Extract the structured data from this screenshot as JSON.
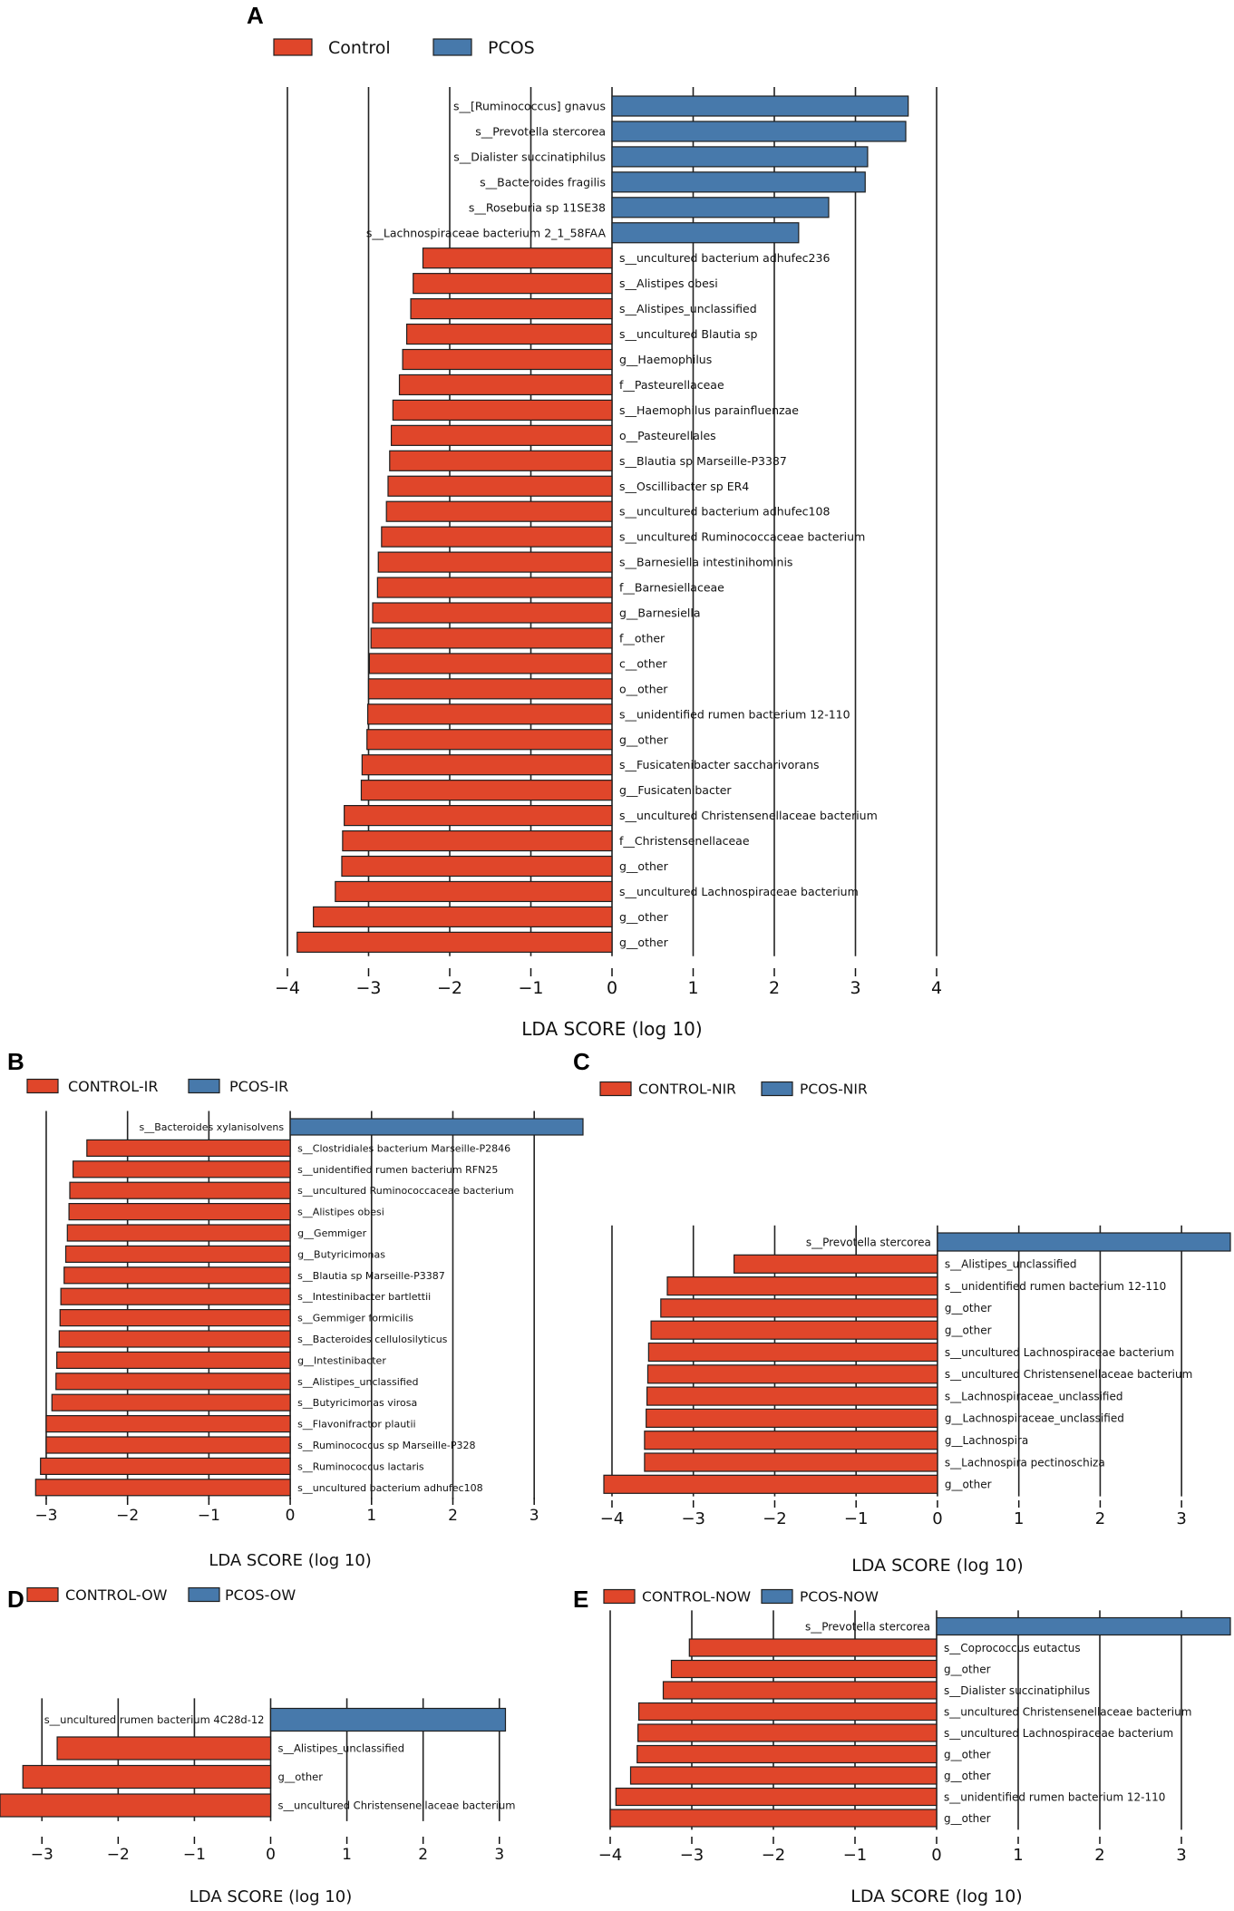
{
  "colors": {
    "control": "#e0462a",
    "case": "#4779ab",
    "edge": "#1f1f1f",
    "grid": "#222222"
  },
  "chart_data": [
    {
      "type": "bar",
      "panel": "A",
      "legend": [
        "Control",
        "PCOS"
      ],
      "xlabel": "LDA SCORE (log 10)",
      "xlim": [
        -4,
        4
      ],
      "xticks": [
        -4,
        -3,
        -2,
        -1,
        0,
        1,
        2,
        3,
        4
      ],
      "xtick_labels": [
        "−4",
        "−3",
        "−2",
        "−1",
        "0",
        "1",
        "2",
        "3",
        "4"
      ],
      "categories": [
        "s__[Ruminococcus] gnavus",
        "s__Prevotella stercorea",
        "s__Dialister succinatiphilus",
        "s__Bacteroides fragilis",
        "s__Roseburia sp 11SE38",
        "s__Lachnospiraceae bacterium 2_1_58FAA",
        "s__uncultured bacterium adhufec236",
        "s__Alistipes obesi",
        "s__Alistipes_unclassified",
        "s__uncultured Blautia sp",
        "g__Haemophilus",
        "f__Pasteurellaceae",
        "s__Haemophilus parainfluenzae",
        "o__Pasteurellales",
        "s__Blautia sp Marseille-P3387",
        "s__Oscillibacter sp ER4",
        "s__uncultured bacterium adhufec108",
        "s__uncultured Ruminococcaceae bacterium",
        "s__Barnesiella intestinihominis",
        "f__Barnesiellaceae",
        "g__Barnesiella",
        "f__other",
        "c__other",
        "o__other",
        "s__unidentified rumen bacterium 12-110",
        "g__other",
        "s__Fusicatenibacter saccharivorans",
        "g__Fusicatenibacter",
        "s__uncultured Christensenellaceae bacterium",
        "f__Christensenellaceae",
        "g__other",
        "s__uncultured Lachnospiraceae bacterium",
        "g__other",
        "g__other"
      ],
      "values": [
        3.65,
        3.62,
        3.15,
        3.12,
        2.67,
        2.3,
        -2.33,
        -2.45,
        -2.48,
        -2.53,
        -2.58,
        -2.62,
        -2.7,
        -2.72,
        -2.74,
        -2.76,
        -2.78,
        -2.84,
        -2.88,
        -2.89,
        -2.95,
        -2.97,
        -2.99,
        -3.0,
        -3.01,
        -3.02,
        -3.08,
        -3.09,
        -3.3,
        -3.32,
        -3.33,
        -3.41,
        -3.68,
        -3.88
      ]
    },
    {
      "type": "bar",
      "panel": "B",
      "legend": [
        "CONTROL-IR",
        "PCOS-IR"
      ],
      "xlabel": "LDA SCORE (log 10)",
      "xlim": [
        -3.1,
        3.6
      ],
      "xticks": [
        -3,
        -2,
        -1,
        0,
        1,
        2,
        3
      ],
      "xtick_labels": [
        "−3",
        "−2",
        "−1",
        "0",
        "1",
        "2",
        "3"
      ],
      "categories": [
        "s__Bacteroides xylanisolvens",
        "s__Clostridiales bacterium Marseille-P2846",
        "s__unidentified rumen bacterium RFN25",
        "s__uncultured Ruminococcaceae bacterium",
        "s__Alistipes obesi",
        "g__Gemmiger",
        "g__Butyricimonas",
        "s__Blautia sp Marseille-P3387",
        "s__Intestinibacter bartlettii",
        "s__Gemmiger formicilis",
        "s__Bacteroides cellulosilyticus",
        "g__Intestinibacter",
        "s__Alistipes_unclassified",
        "s__Butyricimonas virosa",
        "s__Flavonifractor plautii",
        "s__Ruminococcus sp Marseille-P328",
        "s__Ruminococcus lactaris",
        "s__uncultured bacterium adhufec108"
      ],
      "values": [
        3.6,
        -2.5,
        -2.67,
        -2.71,
        -2.72,
        -2.74,
        -2.76,
        -2.78,
        -2.82,
        -2.83,
        -2.84,
        -2.87,
        -2.88,
        -2.93,
        -3.0,
        -3.0,
        -3.07,
        -3.13
      ]
    },
    {
      "type": "bar",
      "panel": "C",
      "legend": [
        "CONTROL-NIR",
        "PCOS-NIR"
      ],
      "xlabel": "LDA SCORE (log 10)",
      "xlim": [
        -4.1,
        3.6
      ],
      "xticks": [
        -4,
        -3,
        -2,
        -1,
        0,
        1,
        2,
        3
      ],
      "xtick_labels": [
        "−4",
        "−3",
        "−2",
        "−1",
        "0",
        "1",
        "2",
        "3"
      ],
      "categories": [
        "s__Prevotella stercorea",
        "s__Alistipes_unclassified",
        "s__unidentified rumen bacterium 12-110",
        "g__other",
        "g__other",
        "s__uncultured Lachnospiraceae bacterium",
        "s__uncultured Christensenellaceae bacterium",
        "s__Lachnospiraceae_unclassified",
        "g__Lachnospiraceae_unclassified",
        "g__Lachnospira",
        "s__Lachnospira pectinoschiza",
        "g__other"
      ],
      "values": [
        3.6,
        -2.5,
        -3.32,
        -3.4,
        -3.52,
        -3.55,
        -3.56,
        -3.57,
        -3.58,
        -3.6,
        -3.6,
        -4.1
      ]
    },
    {
      "type": "bar",
      "panel": "D",
      "legend": [
        "CONTROL-OW",
        "PCOS-OW"
      ],
      "xlabel": "LDA SCORE (log 10)",
      "xlim": [
        -3.55,
        3.55
      ],
      "xticks": [
        -3,
        -2,
        -1,
        0,
        1,
        2,
        3
      ],
      "xtick_labels": [
        "−3",
        "−2",
        "−1",
        "0",
        "1",
        "2",
        "3"
      ],
      "categories": [
        "s__uncultured rumen bacterium 4C28d-12",
        "s__Alistipes_unclassified",
        "g__other",
        "s__uncultured Christensenellaceae bacterium"
      ],
      "values": [
        3.08,
        -2.8,
        -3.25,
        -3.55
      ]
    },
    {
      "type": "bar",
      "panel": "E",
      "legend": [
        "CONTROL-NOW",
        "PCOS-NOW"
      ],
      "xlabel": "LDA SCORE (log 10)",
      "xlim": [
        -4.0,
        3.6
      ],
      "xticks": [
        -4,
        -3,
        -2,
        -1,
        0,
        1,
        2,
        3
      ],
      "xtick_labels": [
        "−4",
        "−3",
        "−2",
        "−1",
        "0",
        "1",
        "2",
        "3"
      ],
      "categories": [
        "s__Prevotella stercorea",
        "s__Coprococcus eutactus",
        "g__other",
        "s__Dialister succinatiphilus",
        "s__uncultured Christensenellaceae bacterium",
        "s__uncultured Lachnospiraceae bacterium",
        "g__other",
        "g__other",
        "s__unidentified rumen bacterium 12-110",
        "g__other"
      ],
      "values": [
        3.6,
        -3.03,
        -3.25,
        -3.35,
        -3.65,
        -3.66,
        -3.67,
        -3.75,
        -3.93,
        -4.0
      ]
    }
  ]
}
